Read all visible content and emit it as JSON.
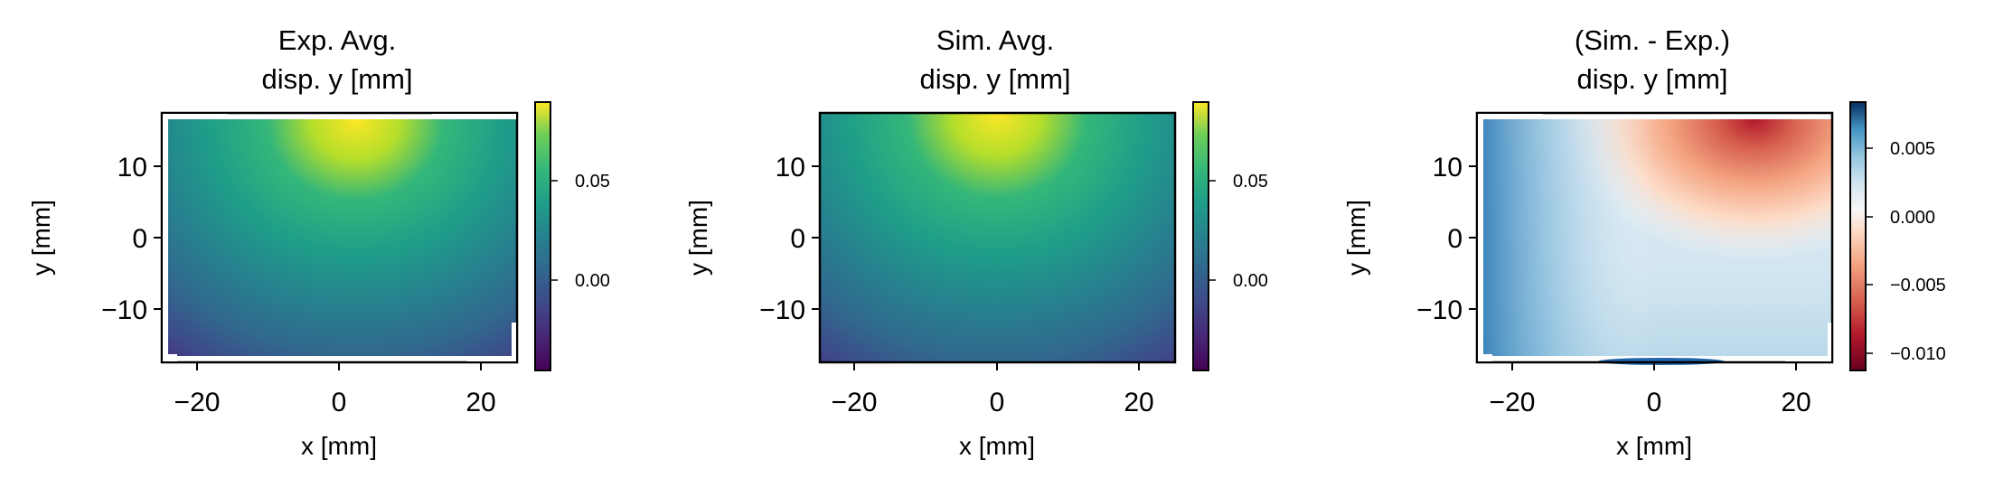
{
  "chart_data": [
    {
      "type": "heatmap",
      "title_line1": "Exp. Avg.",
      "title_line2": "disp. y [mm]",
      "xlabel": "x [mm]",
      "ylabel": "y [mm]",
      "xlim": [
        -25,
        25
      ],
      "ylim": [
        -17.5,
        17.5
      ],
      "x_ticks": [
        -20,
        0,
        20
      ],
      "y_ticks": [
        10,
        0,
        -10
      ],
      "colormap": "viridis",
      "clim": [
        -0.04,
        0.085
      ],
      "colorbar_ticks": [
        0.05,
        0.0
      ],
      "colorbar_tick_labels": [
        "0.05",
        "0.00"
      ],
      "field": "experimental average vertical displacement, peak near top-center",
      "peak_location": {
        "x": 3,
        "y": 17
      },
      "min_region": "lower-left and lower-right corners"
    },
    {
      "type": "heatmap",
      "title_line1": "Sim. Avg.",
      "title_line2": "disp. y [mm]",
      "xlabel": "x [mm]",
      "ylabel": "y [mm]",
      "xlim": [
        -25,
        25
      ],
      "ylim": [
        -17.5,
        17.5
      ],
      "x_ticks": [
        -20,
        0,
        20
      ],
      "y_ticks": [
        10,
        0,
        -10
      ],
      "colormap": "viridis",
      "clim": [
        -0.04,
        0.085
      ],
      "colorbar_ticks": [
        0.05,
        0.0
      ],
      "colorbar_tick_labels": [
        "0.05",
        "0.00"
      ],
      "field": "simulated average vertical displacement, peak near top-center",
      "peak_location": {
        "x": 0,
        "y": 17.5
      },
      "min_region": "lower-left and lower-right corners"
    },
    {
      "type": "heatmap",
      "title_line1": "(Sim. - Exp.)",
      "title_line2": "disp. y [mm]",
      "xlabel": "x [mm]",
      "ylabel": "y [mm]",
      "xlim": [
        -25,
        25
      ],
      "ylim": [
        -17.5,
        17.5
      ],
      "x_ticks": [
        -20,
        0,
        20
      ],
      "y_ticks": [
        10,
        0,
        -10
      ],
      "colormap": "RdBu",
      "clim": [
        -0.012,
        0.008
      ],
      "colorbar_ticks": [
        0.005,
        0.0,
        -0.005,
        -0.01
      ],
      "colorbar_tick_labels": [
        "0.005",
        "0.000",
        "−0.005",
        "−0.010"
      ],
      "field": "difference field: negative (red) near top-right, positive (blue) toward left and bottom",
      "min_location": {
        "x": 12,
        "y": 17
      },
      "max_location": {
        "x": -22,
        "y": 0
      }
    }
  ]
}
